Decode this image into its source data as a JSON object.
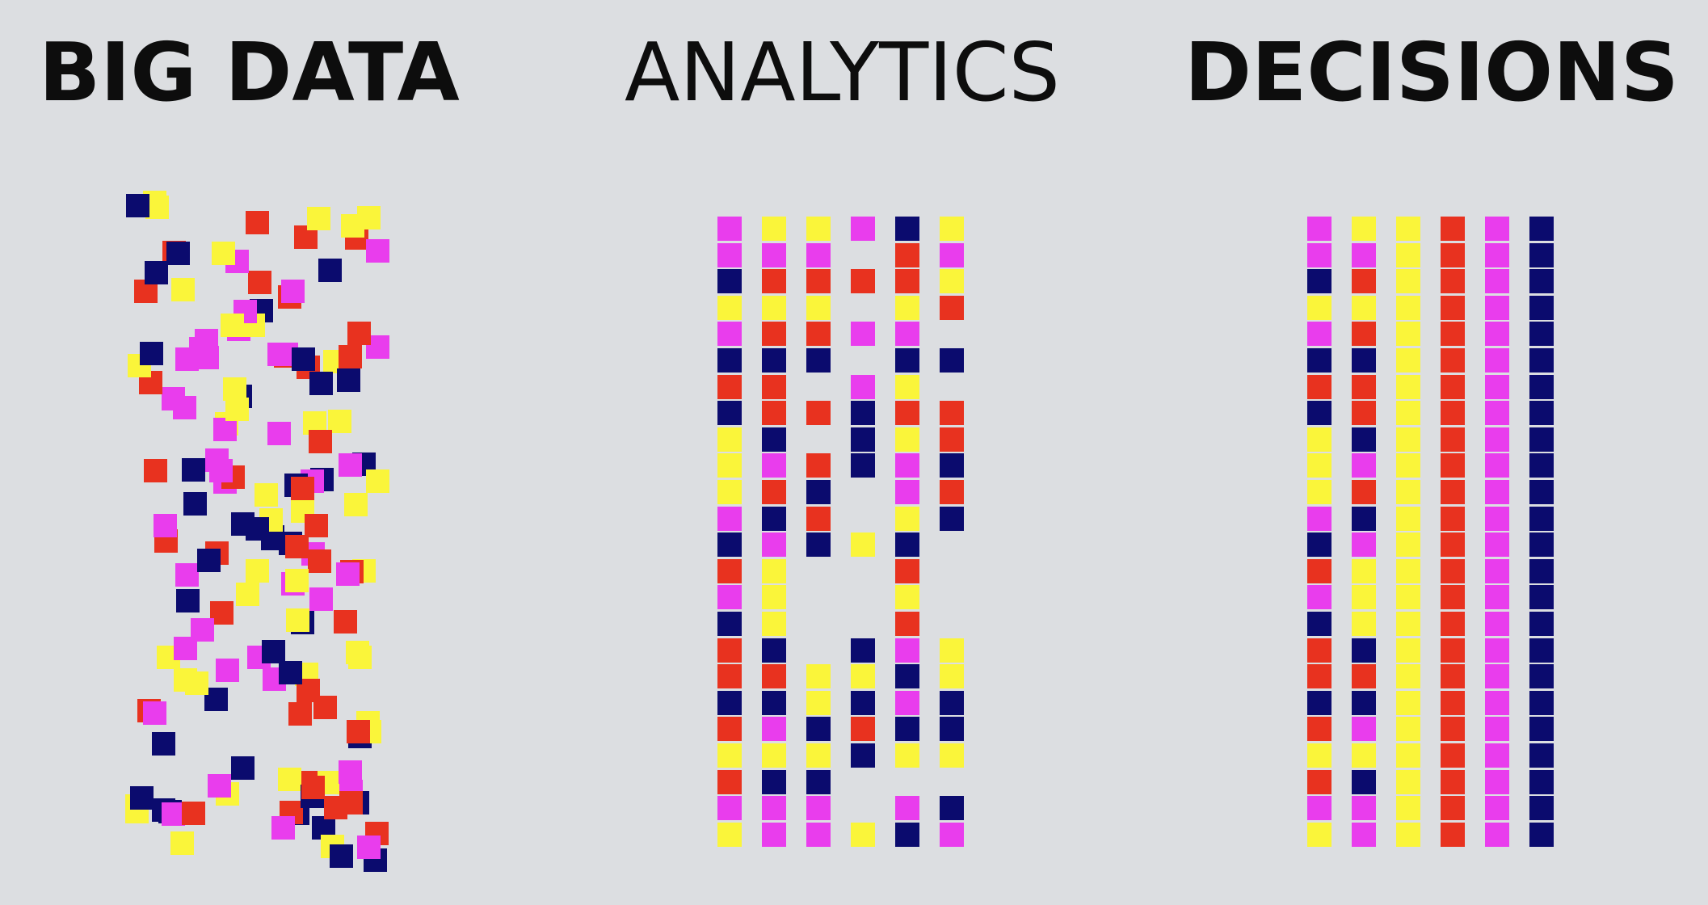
{
  "headings": {
    "big_data": "BIG DATA",
    "analytics": "ANALYTICS",
    "decisions": "DECISIONS"
  },
  "colors": {
    "background": "#dcdee1",
    "text": "#0d0d0d",
    "magenta": "#e93ded",
    "yellow": "#faf53a",
    "red": "#e8321f",
    "navy": "#0b0b6e"
  },
  "analytics_columns": [
    [
      "M",
      "M",
      "N",
      "Y",
      "M",
      "N",
      "R",
      "N",
      "Y",
      "Y",
      "Y",
      "M",
      "N",
      "R",
      "M",
      "N",
      "R",
      "R",
      "N",
      "R",
      "Y",
      "R",
      "M",
      "Y"
    ],
    [
      "Y",
      "M",
      "R",
      "Y",
      "R",
      "N",
      "R",
      "R",
      "N",
      "M",
      "R",
      "N",
      "M",
      "Y",
      "Y",
      "Y",
      "N",
      "R",
      "N",
      "M",
      "Y",
      "N",
      "M",
      "M"
    ],
    [
      "Y",
      "M",
      "R",
      "Y",
      "R",
      "N",
      "-",
      "R",
      "-",
      "R",
      "N",
      "R",
      "N",
      "-",
      "-",
      "-",
      "-",
      "Y",
      "Y",
      "N",
      "Y",
      "N",
      "M",
      "M"
    ],
    [
      "M",
      "-",
      "R",
      "-",
      "M",
      "-",
      "M",
      "N",
      "N",
      "N",
      "-",
      "-",
      "Y",
      "-",
      "-",
      "-",
      "N",
      "Y",
      "N",
      "R",
      "N",
      "-",
      "-",
      "Y"
    ],
    [
      "N",
      "R",
      "R",
      "Y",
      "M",
      "N",
      "Y",
      "R",
      "Y",
      "M",
      "M",
      "Y",
      "N",
      "R",
      "Y",
      "R",
      "M",
      "N",
      "M",
      "N",
      "Y",
      "-",
      "M",
      "N"
    ],
    [
      "Y",
      "M",
      "Y",
      "R",
      "-",
      "N",
      "-",
      "R",
      "R",
      "N",
      "R",
      "N",
      "-",
      "-",
      "-",
      "-",
      "Y",
      "Y",
      "N",
      "N",
      "Y",
      "-",
      "N",
      "M"
    ]
  ],
  "decisions_columns": [
    [
      "M",
      "M",
      "N",
      "Y",
      "M",
      "N",
      "R",
      "N",
      "Y",
      "Y",
      "Y",
      "M",
      "N",
      "R",
      "M",
      "N",
      "R",
      "R",
      "N",
      "R",
      "Y",
      "R",
      "M",
      "Y"
    ],
    [
      "Y",
      "M",
      "R",
      "Y",
      "R",
      "N",
      "R",
      "R",
      "N",
      "M",
      "R",
      "N",
      "M",
      "Y",
      "Y",
      "Y",
      "N",
      "R",
      "N",
      "M",
      "Y",
      "N",
      "M",
      "M"
    ],
    [
      "Y",
      "Y",
      "Y",
      "Y",
      "Y",
      "Y",
      "Y",
      "Y",
      "Y",
      "Y",
      "Y",
      "Y",
      "Y",
      "Y",
      "Y",
      "Y",
      "Y",
      "Y",
      "Y",
      "Y",
      "Y",
      "Y",
      "Y",
      "Y"
    ],
    [
      "R",
      "R",
      "R",
      "R",
      "R",
      "R",
      "R",
      "R",
      "R",
      "R",
      "R",
      "R",
      "R",
      "R",
      "R",
      "R",
      "R",
      "R",
      "R",
      "R",
      "R",
      "R",
      "R",
      "R"
    ],
    [
      "M",
      "M",
      "M",
      "M",
      "M",
      "M",
      "M",
      "M",
      "M",
      "M",
      "M",
      "M",
      "M",
      "M",
      "M",
      "M",
      "M",
      "M",
      "M",
      "M",
      "M",
      "M",
      "M",
      "M"
    ],
    [
      "N",
      "N",
      "N",
      "N",
      "N",
      "N",
      "N",
      "N",
      "N",
      "N",
      "N",
      "N",
      "N",
      "N",
      "N",
      "N",
      "N",
      "N",
      "N",
      "N",
      "N",
      "N",
      "N",
      "N"
    ]
  ],
  "big_data_squares": [
    "Y",
    "M",
    "M",
    "N",
    "R",
    "N",
    "Y",
    "M",
    "R",
    "Y",
    "N",
    "R",
    "Y",
    "M",
    "N",
    "Y",
    "Y",
    "M",
    "N",
    "Y",
    "R",
    "R",
    "N",
    "M",
    "R",
    "M",
    "N",
    "N",
    "Y",
    "M",
    "R",
    "R",
    "Y",
    "R",
    "N",
    "M",
    "N",
    "R",
    "M",
    "M",
    "Y",
    "N",
    "R",
    "R",
    "M",
    "R",
    "Y",
    "N",
    "M",
    "R",
    "N",
    "Y",
    "Y",
    "M",
    "R",
    "N",
    "R",
    "Y",
    "M",
    "Y",
    "R",
    "N",
    "Y",
    "N",
    "M",
    "M",
    "R",
    "Y",
    "R",
    "N",
    "Y",
    "Y",
    "M",
    "R",
    "N",
    "Y",
    "M",
    "N",
    "R",
    "R",
    "Y",
    "M",
    "M",
    "N",
    "Y",
    "R",
    "M",
    "Y",
    "N",
    "Y",
    "M",
    "R",
    "N",
    "R",
    "Y",
    "N",
    "Y",
    "M",
    "N",
    "M",
    "R",
    "Y",
    "Y",
    "M",
    "N",
    "R",
    "N",
    "Y",
    "M",
    "Y",
    "M",
    "N",
    "Y",
    "R",
    "R",
    "N",
    "Y",
    "M",
    "R",
    "N",
    "N",
    "M",
    "Y",
    "M",
    "Y",
    "N",
    "M",
    "R",
    "R",
    "N",
    "Y",
    "Y",
    "M",
    "N",
    "M",
    "Y",
    "R",
    "N",
    "N",
    "M",
    "Y",
    "M",
    "R",
    "Y",
    "M",
    "N",
    "R",
    "N",
    "Y",
    "M",
    "N",
    "R",
    "Y",
    "M"
  ]
}
